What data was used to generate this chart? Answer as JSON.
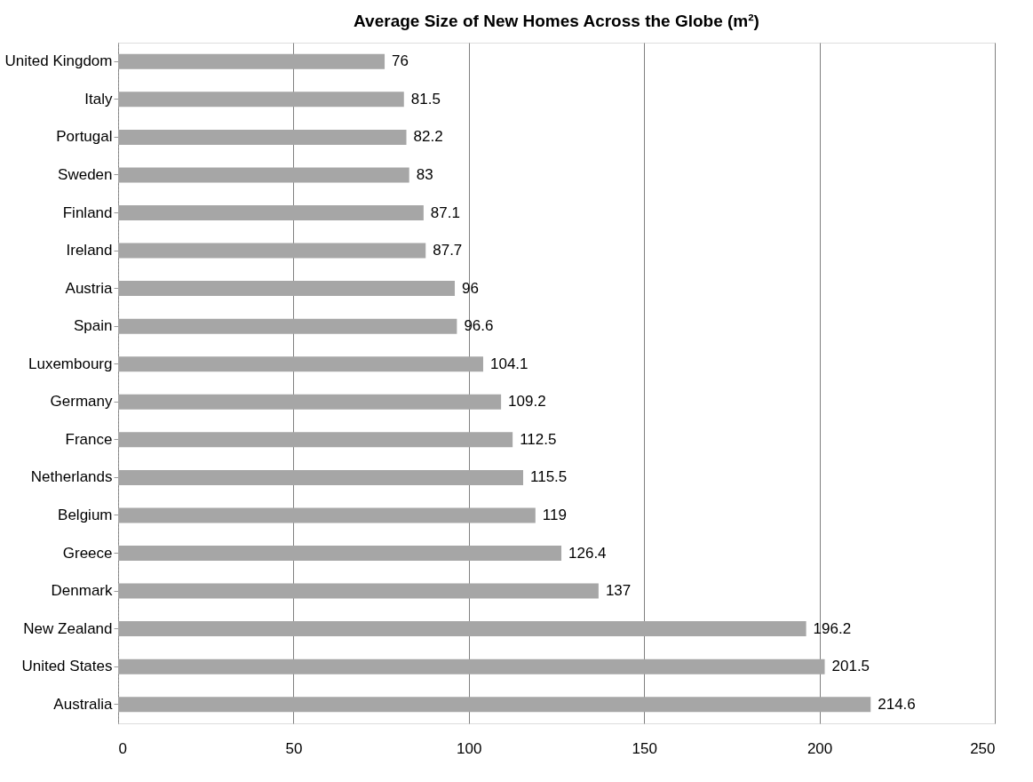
{
  "chart_data": {
    "type": "bar",
    "orientation": "horizontal",
    "title": "Average Size of New Homes Across the Globe (m²)",
    "categories": [
      "United Kingdom",
      "Italy",
      "Portugal",
      "Sweden",
      "Finland",
      "Ireland",
      "Austria",
      "Spain",
      "Luxembourg",
      "Germany",
      "France",
      "Netherlands",
      "Belgium",
      "Greece",
      "Denmark",
      "New Zealand",
      "United States",
      "Australia"
    ],
    "values": [
      76,
      81.5,
      82.2,
      83,
      87.1,
      87.7,
      96,
      96.6,
      104.1,
      109.2,
      112.5,
      115.5,
      119,
      126.4,
      137,
      196.2,
      201.5,
      214.6
    ],
    "color": "#a6a6a6",
    "xlim": [
      0,
      250
    ],
    "xticks": [
      0,
      50,
      100,
      150,
      200,
      250
    ],
    "grid": "x",
    "data_labels": true
  }
}
